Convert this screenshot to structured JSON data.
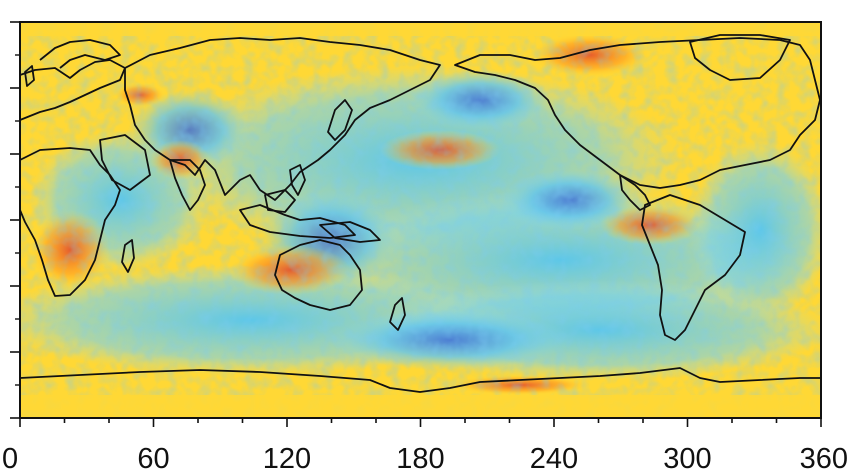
{
  "map": {
    "projection": "equirectangular, longitude 0–360 east",
    "x_axis": {
      "min": 0,
      "max": 360,
      "ticks": [
        "0",
        "60",
        "120",
        "180",
        "240",
        "300",
        "360"
      ],
      "tick_values": [
        0,
        60,
        120,
        180,
        240,
        300,
        360
      ],
      "minor_tick_step": 20
    },
    "y_axis": {
      "min": -90,
      "max": 90,
      "tick_labels": "none",
      "major_ticks": [
        -90,
        -60,
        -30,
        0,
        30,
        60,
        90
      ],
      "minor_ticks": [
        -75,
        -45,
        -15,
        15,
        45,
        75
      ]
    },
    "field": {
      "description_colors": {
        "low": "#3a6fd8",
        "mid_low": "#5fc4f0",
        "mid": "#ffe23a",
        "high": "#ff9a1f",
        "max": "#e8522a"
      },
      "background_color": "#ffd835"
    },
    "coastline_color": "#111111"
  }
}
